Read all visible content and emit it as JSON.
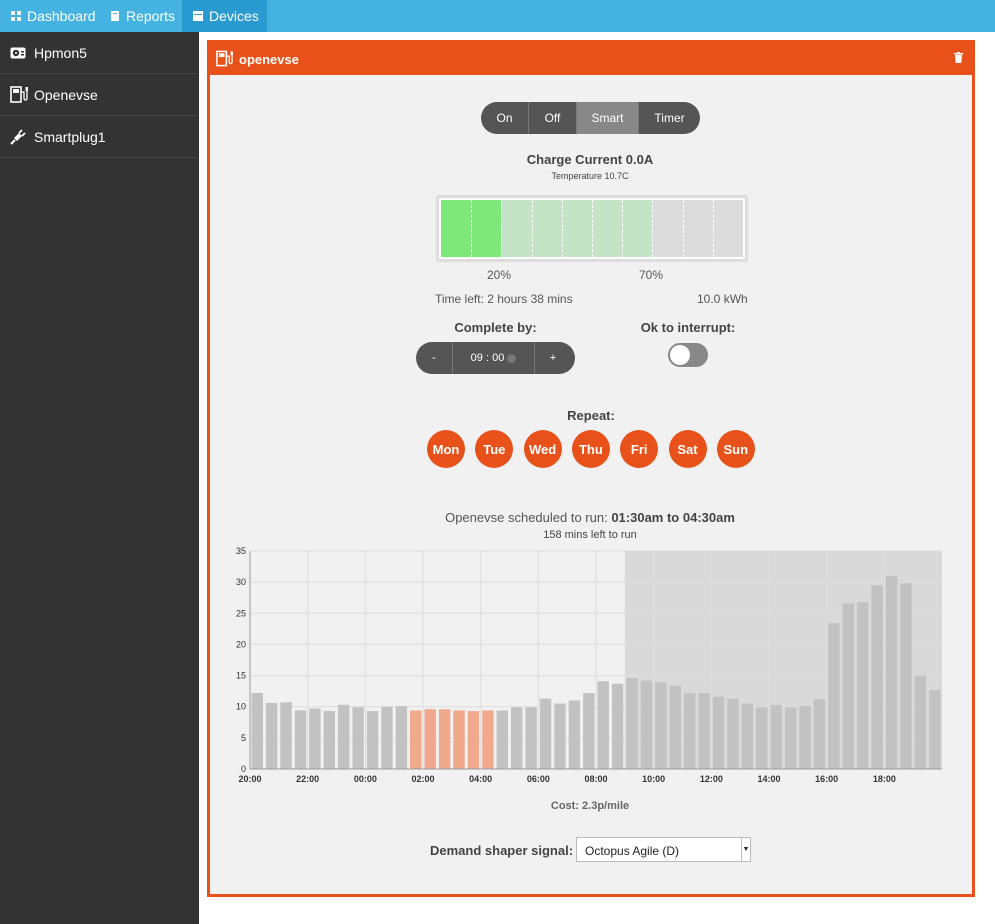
{
  "nav": {
    "tabs": [
      {
        "label": "Dashboard",
        "icon": "dashboard-icon"
      },
      {
        "label": "Reports",
        "icon": "reports-icon"
      },
      {
        "label": "Devices",
        "icon": "devices-icon",
        "active": true
      }
    ]
  },
  "sidebar": {
    "items": [
      {
        "label": "Hpmon5",
        "icon": "heatpump-icon"
      },
      {
        "label": "Openevse",
        "icon": "ev-charger-icon"
      },
      {
        "label": "Smartplug1",
        "icon": "plug-icon"
      }
    ]
  },
  "device": {
    "title": "openevse",
    "icon": "ev-charger-icon",
    "delete_icon": "trash-icon",
    "modes": [
      "On",
      "Off",
      "Smart",
      "Timer"
    ],
    "selected_mode": "Smart",
    "charge_current": "Charge Current 0.0A",
    "temperature": "Temperature 10.7C",
    "battery": {
      "current_soc": 0.2,
      "target_soc": 0.7,
      "current_label": "20%",
      "target_label": "70%",
      "time_left": "Time left: 2 hours 38 mins",
      "energy": "10.0 kWh"
    },
    "complete_by_label": "Complete by:",
    "complete_by_time": "09 : 00",
    "minus": "-",
    "plus": "+",
    "interrupt_label": "Ok to interrupt:",
    "interrupt_on": false,
    "repeat_label": "Repeat:",
    "days": [
      "Mon",
      "Tue",
      "Wed",
      "Thu",
      "Fri",
      "Sat",
      "Sun"
    ],
    "schedule_prefix": "Openevse scheduled to run: ",
    "schedule_range": "01:30am to 04:30am",
    "mins_left": "158 mins left to run",
    "cost": "Cost: 2.3p/mile",
    "shaper_label": "Demand shaper signal:",
    "shaper_value": "Octopus Agile (D)"
  },
  "colors": {
    "accent": "#e8521a",
    "nav": "#44b3e2",
    "nav_active": "#2a9bd0",
    "sidebar": "#333333",
    "bar": "#c2c2c2",
    "bar_scheduled": "#f0a98c",
    "future_shade": "#d9d9d9",
    "battery_current": "#7fe87a",
    "battery_target": "#c5e3c5"
  },
  "chart_data": {
    "type": "bar",
    "x_tick_labels": [
      "20:00",
      "22:00",
      "00:00",
      "02:00",
      "04:00",
      "06:00",
      "08:00",
      "10:00",
      "12:00",
      "14:00",
      "16:00",
      "18:00"
    ],
    "ylim": [
      0,
      35
    ],
    "y_ticks": [
      0,
      5,
      10,
      15,
      20,
      25,
      30,
      35
    ],
    "grid": true,
    "values": [
      12.2,
      10.6,
      10.7,
      9.4,
      9.7,
      9.3,
      10.3,
      9.9,
      9.3,
      10.0,
      10.1,
      9.4,
      9.6,
      9.6,
      9.4,
      9.3,
      9.4,
      9.4,
      9.9,
      9.9,
      11.3,
      10.5,
      11.0,
      12.2,
      14.1,
      13.7,
      14.6,
      14.2,
      13.9,
      13.4,
      12.2,
      12.2,
      11.6,
      11.3,
      10.5,
      9.9,
      10.3,
      9.9,
      10.1,
      11.2,
      23.4,
      26.6,
      26.8,
      29.5,
      31.0,
      29.8,
      15.0,
      12.7
    ],
    "scheduled_slots": [
      11,
      12,
      13,
      14,
      15,
      16
    ],
    "shaded_from_slot": 26
  }
}
